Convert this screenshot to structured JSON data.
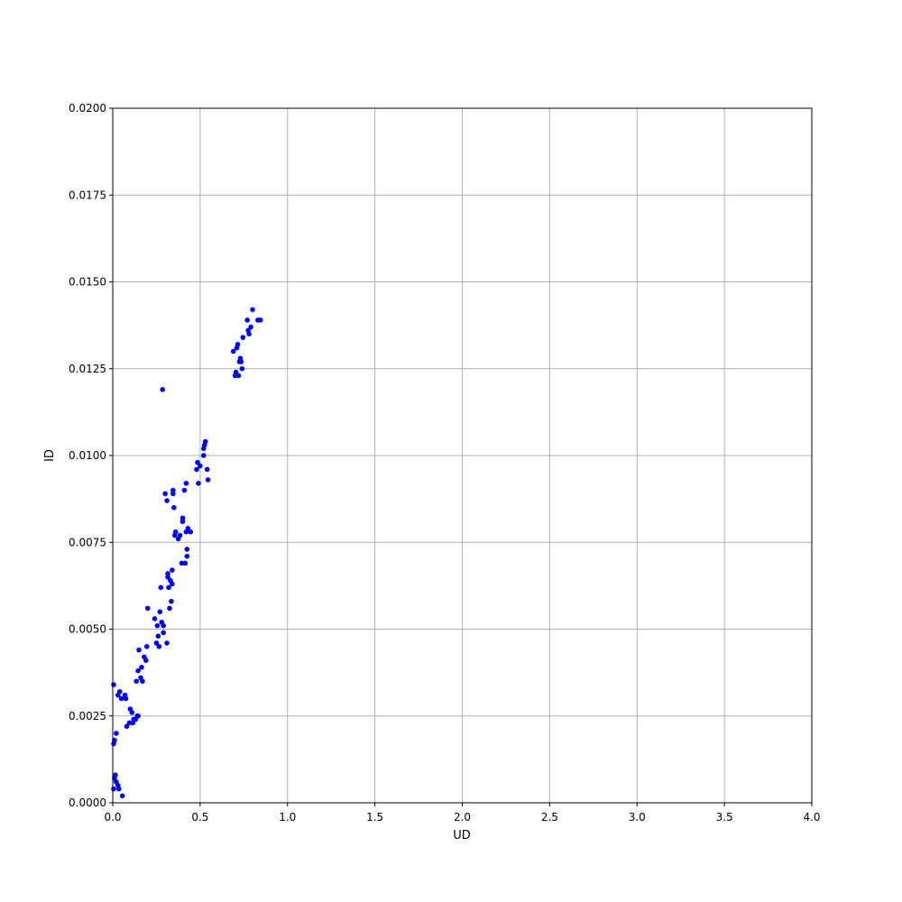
{
  "chart_data": {
    "type": "scatter",
    "xlabel": "UD",
    "ylabel": "ID",
    "xlim": [
      0,
      4.0
    ],
    "ylim": [
      0,
      0.02
    ],
    "xticks": [
      "0.0",
      "0.5",
      "1.0",
      "1.5",
      "2.0",
      "2.5",
      "3.0",
      "3.5",
      "4.0"
    ],
    "yticks": [
      "0.0000",
      "0.0025",
      "0.0050",
      "0.0075",
      "0.0100",
      "0.0125",
      "0.0150",
      "0.0175",
      "0.0200"
    ],
    "grid": true,
    "marker_color": "#0000ff",
    "points": [
      [
        0.005,
        0.0034
      ],
      [
        0.005,
        0.0017
      ],
      [
        0.01,
        0.0018
      ],
      [
        0.02,
        0.002
      ],
      [
        0.005,
        0.0004
      ],
      [
        0.01,
        0.0007
      ],
      [
        0.015,
        0.0008
      ],
      [
        0.02,
        0.0006
      ],
      [
        0.03,
        0.0005
      ],
      [
        0.035,
        0.0004
      ],
      [
        0.055,
        0.0002
      ],
      [
        0.03,
        0.0031
      ],
      [
        0.04,
        0.0032
      ],
      [
        0.05,
        0.003
      ],
      [
        0.07,
        0.0031
      ],
      [
        0.075,
        0.003
      ],
      [
        0.08,
        0.0022
      ],
      [
        0.095,
        0.0023
      ],
      [
        0.1,
        0.0027
      ],
      [
        0.11,
        0.0026
      ],
      [
        0.115,
        0.0023
      ],
      [
        0.12,
        0.0024
      ],
      [
        0.13,
        0.0024
      ],
      [
        0.14,
        0.0025
      ],
      [
        0.145,
        0.0025
      ],
      [
        0.135,
        0.0035
      ],
      [
        0.145,
        0.0038
      ],
      [
        0.15,
        0.0044
      ],
      [
        0.16,
        0.0036
      ],
      [
        0.165,
        0.0039
      ],
      [
        0.17,
        0.0035
      ],
      [
        0.18,
        0.0042
      ],
      [
        0.19,
        0.0041
      ],
      [
        0.195,
        0.0045
      ],
      [
        0.2,
        0.0056
      ],
      [
        0.24,
        0.0053
      ],
      [
        0.25,
        0.0046
      ],
      [
        0.255,
        0.0051
      ],
      [
        0.26,
        0.0048
      ],
      [
        0.265,
        0.0045
      ],
      [
        0.27,
        0.0055
      ],
      [
        0.275,
        0.0062
      ],
      [
        0.28,
        0.0052
      ],
      [
        0.29,
        0.0049
      ],
      [
        0.29,
        0.0051
      ],
      [
        0.285,
        0.0119
      ],
      [
        0.3,
        0.0089
      ],
      [
        0.31,
        0.0046
      ],
      [
        0.31,
        0.0087
      ],
      [
        0.315,
        0.0065
      ],
      [
        0.315,
        0.0066
      ],
      [
        0.32,
        0.0062
      ],
      [
        0.325,
        0.0056
      ],
      [
        0.33,
        0.0064
      ],
      [
        0.335,
        0.0058
      ],
      [
        0.34,
        0.0063
      ],
      [
        0.34,
        0.0067
      ],
      [
        0.345,
        0.0089
      ],
      [
        0.345,
        0.009
      ],
      [
        0.35,
        0.0085
      ],
      [
        0.355,
        0.0077
      ],
      [
        0.36,
        0.0078
      ],
      [
        0.375,
        0.0076
      ],
      [
        0.385,
        0.0077
      ],
      [
        0.395,
        0.0069
      ],
      [
        0.4,
        0.0081
      ],
      [
        0.4,
        0.0082
      ],
      [
        0.41,
        0.009
      ],
      [
        0.415,
        0.0069
      ],
      [
        0.42,
        0.0078
      ],
      [
        0.42,
        0.0092
      ],
      [
        0.425,
        0.0071
      ],
      [
        0.425,
        0.0073
      ],
      [
        0.43,
        0.0079
      ],
      [
        0.445,
        0.0078
      ],
      [
        0.48,
        0.0096
      ],
      [
        0.485,
        0.0098
      ],
      [
        0.49,
        0.0092
      ],
      [
        0.5,
        0.0097
      ],
      [
        0.52,
        0.0102
      ],
      [
        0.52,
        0.01
      ],
      [
        0.525,
        0.0103
      ],
      [
        0.53,
        0.0104
      ],
      [
        0.54,
        0.0096
      ],
      [
        0.545,
        0.0093
      ],
      [
        0.69,
        0.013
      ],
      [
        0.7,
        0.0123
      ],
      [
        0.705,
        0.0124
      ],
      [
        0.71,
        0.0131
      ],
      [
        0.715,
        0.0132
      ],
      [
        0.72,
        0.0123
      ],
      [
        0.725,
        0.0127
      ],
      [
        0.73,
        0.0128
      ],
      [
        0.735,
        0.0127
      ],
      [
        0.74,
        0.0125
      ],
      [
        0.745,
        0.0134
      ],
      [
        0.77,
        0.0139
      ],
      [
        0.775,
        0.0136
      ],
      [
        0.78,
        0.0135
      ],
      [
        0.79,
        0.0137
      ],
      [
        0.8,
        0.0142
      ],
      [
        0.83,
        0.0139
      ],
      [
        0.845,
        0.0139
      ]
    ]
  }
}
